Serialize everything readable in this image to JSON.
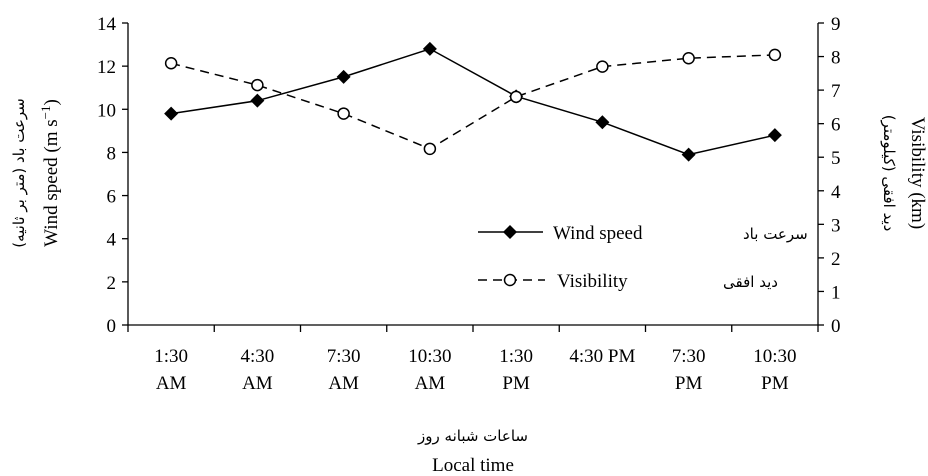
{
  "chart_data": {
    "type": "line",
    "categories": [
      [
        "1:30",
        "AM"
      ],
      [
        "4:30",
        "AM"
      ],
      [
        "7:30",
        "AM"
      ],
      [
        "10:30",
        "AM"
      ],
      [
        "1:30",
        "PM"
      ],
      [
        "4:30 PM",
        ""
      ],
      [
        "7:30",
        "PM"
      ],
      [
        "10:30",
        "PM"
      ]
    ],
    "series": [
      {
        "name": "Wind speed",
        "name_fa": "سرعت باد",
        "axis": "left",
        "marker": "filled-diamond",
        "dash": "solid",
        "values": [
          9.8,
          10.4,
          11.5,
          12.8,
          10.6,
          9.4,
          7.9,
          8.8
        ]
      },
      {
        "name": "Visibility",
        "name_fa": "دید افقی",
        "axis": "right",
        "marker": "open-circle",
        "dash": "dashed",
        "values": [
          7.8,
          7.15,
          6.3,
          5.25,
          6.8,
          7.7,
          7.95,
          8.05
        ]
      }
    ],
    "y_left": {
      "label": "Wind speed (m s⁻¹)",
      "label_fa": "سرعت باد (متر بر ثانیه)",
      "ylim": [
        0,
        14
      ],
      "ticks": [
        "0",
        "2",
        "4",
        "6",
        "8",
        "10",
        "12",
        "14"
      ]
    },
    "y_right": {
      "label": "Visibility (km)",
      "label_fa": "دید افقی (کیلومتر)",
      "ylim": [
        0,
        9
      ],
      "ticks": [
        "0",
        "1",
        "2",
        "3",
        "4",
        "5",
        "6",
        "7",
        "8",
        "9"
      ]
    },
    "x_axis": {
      "label": "Local time",
      "label_fa": "ساعات شبانه روز"
    },
    "legend_position": "lower-right",
    "grid": false,
    "colors": {
      "line": "#000000",
      "background": "#ffffff"
    }
  }
}
